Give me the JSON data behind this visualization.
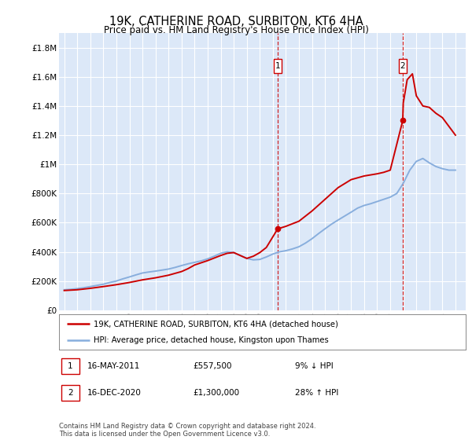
{
  "title": "19K, CATHERINE ROAD, SURBITON, KT6 4HA",
  "subtitle": "Price paid vs. HM Land Registry's House Price Index (HPI)",
  "ylabel_ticks": [
    "£0",
    "£200K",
    "£400K",
    "£600K",
    "£800K",
    "£1M",
    "£1.2M",
    "£1.4M",
    "£1.6M",
    "£1.8M"
  ],
  "ytick_values": [
    0,
    200000,
    400000,
    600000,
    800000,
    1000000,
    1200000,
    1400000,
    1600000,
    1800000
  ],
  "ylim": [
    0,
    1900000
  ],
  "xlim_start": 1994.6,
  "xlim_end": 2025.8,
  "plot_bg": "#dce8f8",
  "red_line_color": "#cc0000",
  "blue_line_color": "#88aedd",
  "grid_color": "#ffffff",
  "marker1_date": 2011.37,
  "marker1_value": 557500,
  "marker1_date_str": "16-MAY-2011",
  "marker1_price": "£557,500",
  "marker1_hpi": "9% ↓ HPI",
  "marker2_date": 2020.96,
  "marker2_value": 1300000,
  "marker2_date_str": "16-DEC-2020",
  "marker2_price": "£1,300,000",
  "marker2_hpi": "28% ↑ HPI",
  "legend_line1": "19K, CATHERINE ROAD, SURBITON, KT6 4HA (detached house)",
  "legend_line2": "HPI: Average price, detached house, Kingston upon Thames",
  "footer": "Contains HM Land Registry data © Crown copyright and database right 2024.\nThis data is licensed under the Open Government Licence v3.0.",
  "hpi_years": [
    1995,
    1995.5,
    1996,
    1996.5,
    1997,
    1997.5,
    1998,
    1998.5,
    1999,
    1999.5,
    2000,
    2000.5,
    2001,
    2001.5,
    2002,
    2002.5,
    2003,
    2003.5,
    2004,
    2004.5,
    2005,
    2005.5,
    2006,
    2006.5,
    2007,
    2007.5,
    2008,
    2008.5,
    2009,
    2009.5,
    2010,
    2010.5,
    2011,
    2011.5,
    2012,
    2012.5,
    2013,
    2013.5,
    2014,
    2014.5,
    2015,
    2015.5,
    2016,
    2016.5,
    2017,
    2017.5,
    2018,
    2018.5,
    2019,
    2019.5,
    2020,
    2020.5,
    2021,
    2021.5,
    2022,
    2022.5,
    2023,
    2023.5,
    2024,
    2024.5,
    2025
  ],
  "hpi_values": [
    140000,
    143000,
    148000,
    154000,
    162000,
    170000,
    178000,
    190000,
    200000,
    215000,
    228000,
    242000,
    255000,
    262000,
    268000,
    275000,
    282000,
    293000,
    306000,
    318000,
    328000,
    338000,
    352000,
    370000,
    390000,
    400000,
    395000,
    375000,
    355000,
    345000,
    348000,
    365000,
    385000,
    400000,
    408000,
    420000,
    435000,
    460000,
    490000,
    525000,
    558000,
    590000,
    618000,
    645000,
    672000,
    700000,
    718000,
    730000,
    745000,
    760000,
    775000,
    800000,
    870000,
    960000,
    1020000,
    1040000,
    1010000,
    985000,
    970000,
    960000,
    960000
  ],
  "price_years": [
    1995,
    1996,
    1997,
    1998,
    1999,
    2000,
    2001,
    2002,
    2003,
    2004,
    2004.5,
    2005,
    2006,
    2007,
    2007.5,
    2008,
    2008.5,
    2009,
    2009.5,
    2010,
    2010.5,
    2011.37,
    2012,
    2013,
    2014,
    2015,
    2016,
    2017,
    2018,
    2019,
    2019.5,
    2020,
    2020.96,
    2021,
    2021.3,
    2021.7,
    2022,
    2022.5,
    2023,
    2023.5,
    2024,
    2024.5,
    2025
  ],
  "price_values": [
    135000,
    140000,
    150000,
    162000,
    175000,
    190000,
    208000,
    222000,
    240000,
    265000,
    285000,
    310000,
    340000,
    375000,
    390000,
    395000,
    375000,
    355000,
    370000,
    395000,
    430000,
    557500,
    575000,
    610000,
    680000,
    760000,
    840000,
    895000,
    920000,
    935000,
    945000,
    960000,
    1300000,
    1420000,
    1580000,
    1620000,
    1470000,
    1400000,
    1390000,
    1350000,
    1320000,
    1260000,
    1200000
  ]
}
